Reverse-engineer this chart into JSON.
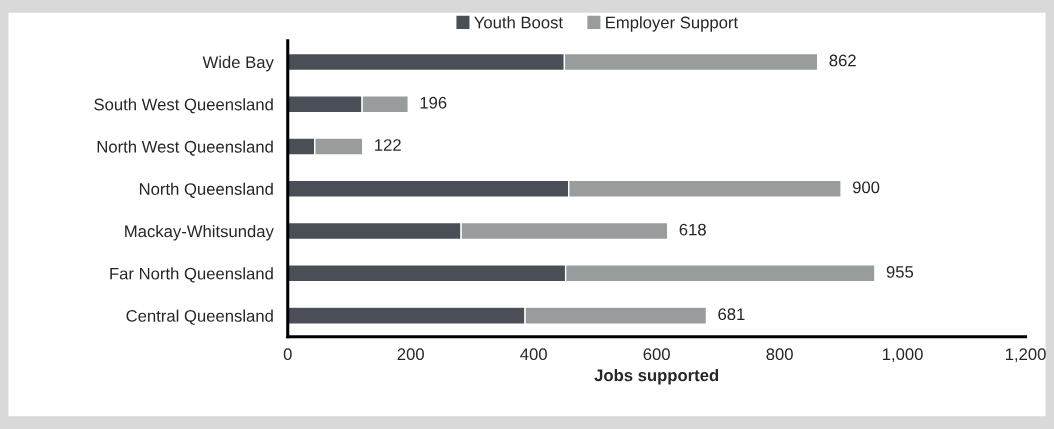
{
  "chart_data": {
    "type": "bar",
    "orientation": "horizontal",
    "stacked": true,
    "categories": [
      "Wide Bay",
      "South West Queensland",
      "North West Queensland",
      "North Queensland",
      "Mackay-Whitsunday",
      "Far North Queensland",
      "Central Queensland"
    ],
    "series": [
      {
        "name": "Youth Boost",
        "color": "#4a4e56",
        "values": [
          450,
          121,
          44,
          457,
          282,
          452,
          386
        ]
      },
      {
        "name": "Employer Support",
        "color": "#999c9c",
        "values": [
          412,
          75,
          78,
          443,
          336,
          503,
          295
        ]
      }
    ],
    "totals": [
      "862",
      "196",
      "122",
      "900",
      "618",
      "955",
      "681"
    ],
    "xlabel": "Jobs supported",
    "xlim": [
      0,
      1200
    ],
    "xticks": [
      0,
      200,
      400,
      600,
      800,
      {
        "value": 1000,
        "label": "1,000"
      },
      {
        "value": 1200,
        "label": "1,200"
      }
    ],
    "legend": "top",
    "grid": false
  }
}
